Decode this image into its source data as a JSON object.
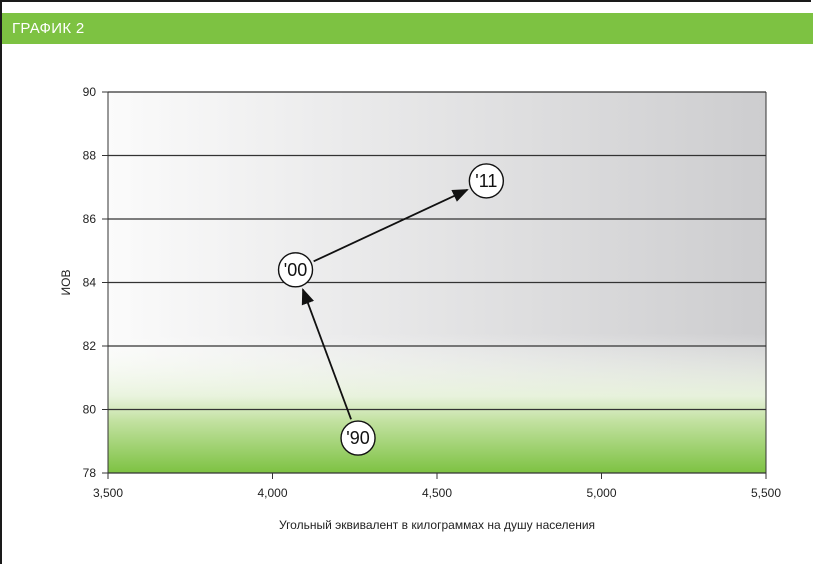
{
  "header": {
    "title": "ГРАФИК 2"
  },
  "chart_data": {
    "type": "line",
    "xlabel": "Угольный эквивалент в килограммах на душу населения",
    "ylabel": "ИОВ",
    "xlim": [
      3500,
      5500
    ],
    "ylim": [
      78,
      90
    ],
    "x_ticks": [
      3500,
      4000,
      4500,
      5000,
      5500
    ],
    "x_tick_labels": [
      "3,500",
      "4,000",
      "4,500",
      "5,000",
      "5,500"
    ],
    "y_ticks": [
      78,
      80,
      82,
      84,
      86,
      88,
      90
    ],
    "y_tick_labels": [
      "78",
      "80",
      "82",
      "84",
      "86",
      "88",
      "90"
    ],
    "grid": "horizontal",
    "points": [
      {
        "label": "'90",
        "x": 4260,
        "y": 79.1
      },
      {
        "label": "'00",
        "x": 4070,
        "y": 84.4
      },
      {
        "label": "'11",
        "x": 4650,
        "y": 87.2
      }
    ],
    "colors": {
      "accent": "#7dc242",
      "line": "#111111",
      "grid": "#333333"
    }
  }
}
